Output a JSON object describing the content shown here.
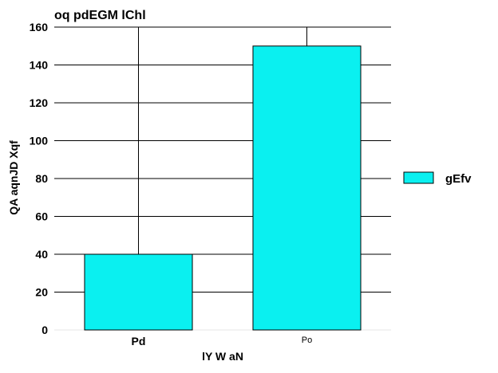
{
  "chart_data": {
    "type": "bar",
    "title": "oq pdEGM  lChl",
    "xlabel": "lY W aN",
    "ylabel": "QA aqnJD Xqf",
    "categories": [
      "Pd",
      "Po"
    ],
    "series": [
      {
        "name": "gEfv",
        "values": [
          40,
          150
        ],
        "color": "#0af0f0"
      }
    ],
    "ylim": [
      0,
      160
    ],
    "yticks": [
      0,
      20,
      40,
      60,
      80,
      100,
      120,
      140,
      160
    ],
    "grid": true,
    "legend_position": "right"
  }
}
